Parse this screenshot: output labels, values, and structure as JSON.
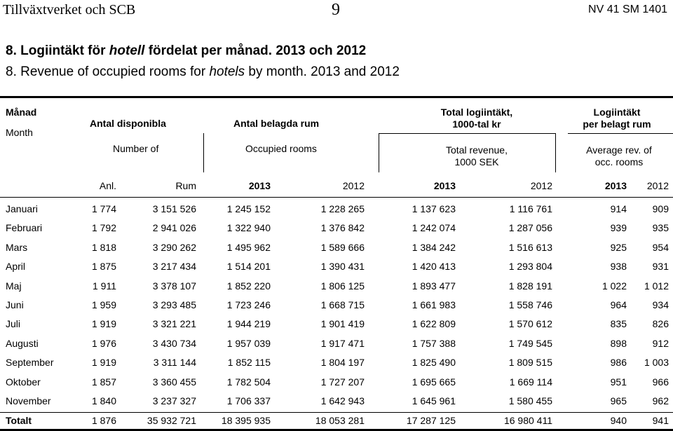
{
  "page_header": {
    "left": "Tillväxtverket och SCB",
    "center": "9",
    "right": "NV 41 SM 1401"
  },
  "title": {
    "sv_prefix": "8. Logiintäkt för ",
    "sv_italic": "hotell",
    "sv_suffix": " fördelat per månad. 2013 och 2012",
    "en_prefix": "8. Revenue of occupied rooms for ",
    "en_italic": "hotels",
    "en_suffix": " by month. 2013 and 2012"
  },
  "headers": {
    "month_sv": "Månad",
    "month_en": "Month",
    "available_sv": "Antal disponibla",
    "available_en": "Number of",
    "occupied_sv": "Antal belagda rum",
    "occupied_en": "Occupied rooms",
    "revenue_sv_1": "Total logiintäkt,",
    "revenue_sv_2": "1000-tal kr",
    "revenue_en_1": "Total revenue,",
    "revenue_en_2": "1000 SEK",
    "avg_sv_1": "Logiintäkt",
    "avg_sv_2": "per belagt rum",
    "avg_en_1": "Average rev. of",
    "avg_en_2": "occ. rooms",
    "sub": [
      "Anl.",
      "Rum",
      "2013",
      "2012",
      "2013",
      "2012",
      "2013",
      "2012"
    ]
  },
  "rows": [
    {
      "month": "Januari",
      "anl": "1 774",
      "rum": "3 151 526",
      "occ2013": "1 245 152",
      "occ2012": "1 228 265",
      "rev2013": "1 137 623",
      "rev2012": "1 116 761",
      "avg2013": "914",
      "avg2012": "909"
    },
    {
      "month": "Februari",
      "anl": "1 792",
      "rum": "2 941 026",
      "occ2013": "1 322 940",
      "occ2012": "1 376 842",
      "rev2013": "1 242 074",
      "rev2012": "1 287 056",
      "avg2013": "939",
      "avg2012": "935"
    },
    {
      "month": "Mars",
      "anl": "1 818",
      "rum": "3 290 262",
      "occ2013": "1 495 962",
      "occ2012": "1 589 666",
      "rev2013": "1 384 242",
      "rev2012": "1 516 613",
      "avg2013": "925",
      "avg2012": "954"
    },
    {
      "month": "April",
      "anl": "1 875",
      "rum": "3 217 434",
      "occ2013": "1 514 201",
      "occ2012": "1 390 431",
      "rev2013": "1 420 413",
      "rev2012": "1 293 804",
      "avg2013": "938",
      "avg2012": "931"
    },
    {
      "month": "Maj",
      "anl": "1 911",
      "rum": "3 378 107",
      "occ2013": "1 852 220",
      "occ2012": "1 806 125",
      "rev2013": "1 893 477",
      "rev2012": "1 828 191",
      "avg2013": "1 022",
      "avg2012": "1 012"
    },
    {
      "month": "Juni",
      "anl": "1 959",
      "rum": "3 293 485",
      "occ2013": "1 723 246",
      "occ2012": "1 668 715",
      "rev2013": "1 661 983",
      "rev2012": "1 558 746",
      "avg2013": "964",
      "avg2012": "934"
    },
    {
      "month": "Juli",
      "anl": "1 919",
      "rum": "3 321 221",
      "occ2013": "1 944 219",
      "occ2012": "1 901 419",
      "rev2013": "1 622 809",
      "rev2012": "1 570 612",
      "avg2013": "835",
      "avg2012": "826"
    },
    {
      "month": "Augusti",
      "anl": "1 976",
      "rum": "3 430 734",
      "occ2013": "1 957 039",
      "occ2012": "1 917 471",
      "rev2013": "1 757 388",
      "rev2012": "1 749 545",
      "avg2013": "898",
      "avg2012": "912"
    },
    {
      "month": "September",
      "anl": "1 919",
      "rum": "3 311 144",
      "occ2013": "1 852 115",
      "occ2012": "1 804 197",
      "rev2013": "1 825 490",
      "rev2012": "1 809 515",
      "avg2013": "986",
      "avg2012": "1 003"
    },
    {
      "month": "Oktober",
      "anl": "1 857",
      "rum": "3 360 455",
      "occ2013": "1 782 504",
      "occ2012": "1 727 207",
      "rev2013": "1 695 665",
      "rev2012": "1 669 114",
      "avg2013": "951",
      "avg2012": "966"
    },
    {
      "month": "November",
      "anl": "1 840",
      "rum": "3 237 327",
      "occ2013": "1 706 337",
      "occ2012": "1 642 943",
      "rev2013": "1 645 961",
      "rev2012": "1 580 455",
      "avg2013": "965",
      "avg2012": "962"
    }
  ],
  "total": {
    "month": "Totalt",
    "anl": "1 876",
    "rum": "35 932 721",
    "occ2013": "18 395 935",
    "occ2012": "18 053 281",
    "rev2013": "17 287 125",
    "rev2012": "16 980 411",
    "avg2013": "940",
    "avg2012": "941"
  }
}
